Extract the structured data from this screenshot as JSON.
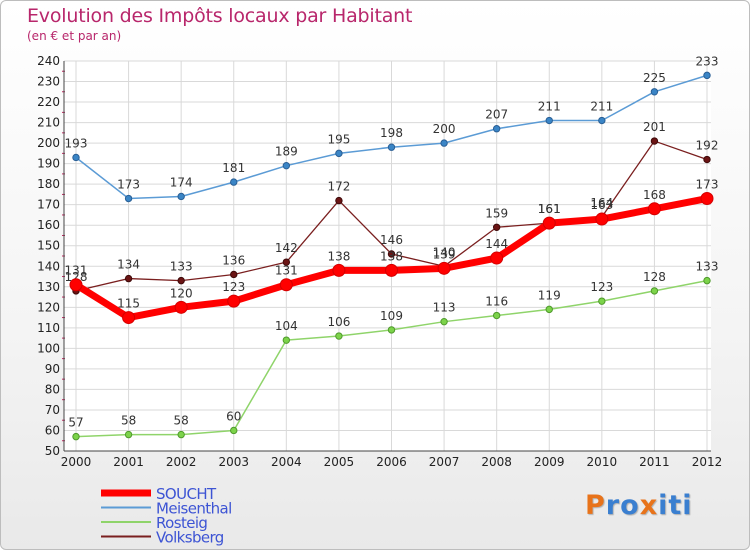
{
  "chart_data": {
    "type": "line",
    "title": "Evolution des Impôts locaux par Habitant",
    "subtitle": "(en € et par an)",
    "categories": [
      "2000",
      "2001",
      "2002",
      "2003",
      "2004",
      "2005",
      "2006",
      "2007",
      "2008",
      "2009",
      "2010",
      "2011",
      "2012"
    ],
    "ylim": [
      50,
      240
    ],
    "yticks": [
      50,
      60,
      70,
      80,
      90,
      100,
      110,
      120,
      130,
      140,
      150,
      160,
      170,
      180,
      190,
      200,
      210,
      220,
      230,
      240
    ],
    "grid": true,
    "legend_position": "bottom-left",
    "series": [
      {
        "name": "Meisenthal",
        "color": "#5b9bd5",
        "values": [
          193,
          173,
          174,
          181,
          189,
          195,
          198,
          200,
          207,
          211,
          211,
          225,
          233
        ]
      },
      {
        "name": "Rosteig",
        "color": "#8fd46a",
        "values": [
          57,
          58,
          58,
          60,
          104,
          106,
          109,
          113,
          116,
          119,
          123,
          128,
          133
        ]
      },
      {
        "name": "Volksberg",
        "color": "#7a1f1f",
        "values": [
          128,
          134,
          133,
          136,
          142,
          172,
          146,
          140,
          159,
          161,
          164,
          201,
          192
        ]
      },
      {
        "name": "SOUCHT",
        "color": "#ff0000",
        "values": [
          131,
          115,
          120,
          123,
          131,
          138,
          138,
          139,
          144,
          161,
          163,
          168,
          173
        ]
      }
    ],
    "legend_order": [
      "SOUCHT",
      "Meisenthal",
      "Rosteig",
      "Volksberg"
    ],
    "data_label_text": {
      "Volksberg": [
        "128",
        "134",
        "133",
        "136",
        "142",
        "172",
        "146",
        "140",
        "159",
        "161",
        "164",
        "201",
        "192"
      ],
      "SOUCHT": [
        "131",
        "115",
        "120",
        "123",
        "131",
        "138",
        "138",
        "139",
        "144",
        "161",
        "163",
        "168",
        "173"
      ]
    }
  },
  "logo": {
    "text": "Proxiti",
    "letters": [
      "P",
      "r",
      "o",
      "x",
      "i",
      "t",
      "i"
    ],
    "colors": [
      "#e8731a",
      "#3a7fd0",
      "#3a7fd0",
      "#e8731a",
      "#3a7fd0",
      "#3a7fd0",
      "#3a7fd0"
    ]
  }
}
